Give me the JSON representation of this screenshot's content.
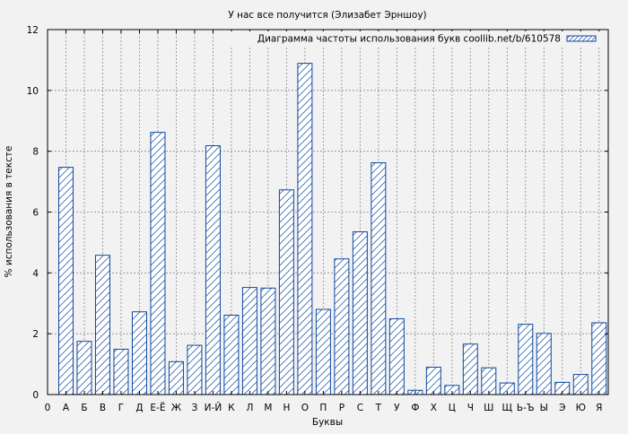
{
  "chart_data": {
    "type": "bar",
    "title": "У нас все получится (Элизабет Эрншоу)",
    "xlabel": "Буквы",
    "ylabel": "% использования в тексте",
    "legend_label": "Диаграмма частоты использования букв coollib.net/b/610578",
    "legend_position": "top-right",
    "grid": true,
    "ylim": [
      0,
      12
    ],
    "yticks": [
      0,
      2,
      4,
      6,
      8,
      10,
      12
    ],
    "x_start_label": "0",
    "categories": [
      "А",
      "Б",
      "В",
      "Г",
      "Д",
      "Е-Ё",
      "Ж",
      "З",
      "И-Й",
      "К",
      "Л",
      "М",
      "Н",
      "О",
      "П",
      "Р",
      "С",
      "Т",
      "У",
      "Ф",
      "Х",
      "Ц",
      "Ч",
      "Ш",
      "Щ",
      "Ь-Ъ",
      "Ы",
      "Э",
      "Ю",
      "Я"
    ],
    "values": [
      7.47,
      1.75,
      4.58,
      1.49,
      2.72,
      8.62,
      1.08,
      1.62,
      8.18,
      2.61,
      3.52,
      3.5,
      6.73,
      10.89,
      2.8,
      4.46,
      5.35,
      7.62,
      2.49,
      0.14,
      0.9,
      0.3,
      1.66,
      0.88,
      0.38,
      2.31,
      2.01,
      0.4,
      0.66,
      2.36
    ],
    "colors": {
      "bar_edge": "#0d47a1",
      "bar_hatch": "#0d47a1",
      "bar_fill": "#ffffff",
      "plot_bg": "#f2f2f2",
      "grid": "#8a8a8a"
    }
  }
}
